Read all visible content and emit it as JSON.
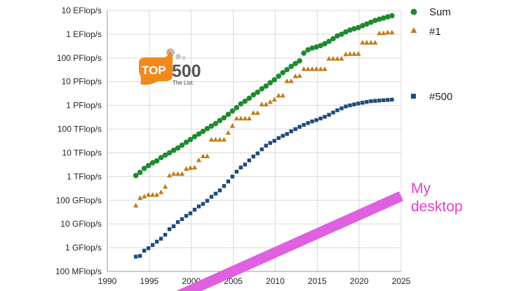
{
  "chart_data": {
    "type": "scatter",
    "title": "",
    "xlabel": "",
    "ylabel": "",
    "y_scale": "log",
    "xlim": [
      1990,
      2025
    ],
    "x_ticks": [
      1990,
      1995,
      2000,
      2005,
      2010,
      2015,
      2020,
      2025
    ],
    "y_tick_labels": [
      "100 MFlop/s",
      "1 GFlop/s",
      "10 GFlop/s",
      "100 GFlop/s",
      "1 TFlop/s",
      "10 TFlop/s",
      "100 TFlop/s",
      "1 PFlop/s",
      "10 PFlop/s",
      "100 PFlop/s",
      "1 EFlop/s",
      "10 EFlop/s"
    ],
    "ylim_gflops": [
      0.1,
      10000000000
    ],
    "grid": true,
    "legend": "right",
    "series": [
      {
        "name": "Sum",
        "marker": "circle",
        "color": "#1e8a2e",
        "x": [
          1993.4,
          1993.9,
          1994.4,
          1994.9,
          1995.4,
          1995.9,
          1996.4,
          1996.9,
          1997.4,
          1997.9,
          1998.4,
          1998.9,
          1999.4,
          1999.9,
          2000.4,
          2000.9,
          2001.4,
          2001.9,
          2002.4,
          2002.9,
          2003.4,
          2003.9,
          2004.4,
          2004.9,
          2005.4,
          2005.9,
          2006.4,
          2006.9,
          2007.4,
          2007.9,
          2008.4,
          2008.9,
          2009.4,
          2009.9,
          2010.4,
          2010.9,
          2011.4,
          2011.9,
          2012.4,
          2012.9,
          2013.4,
          2013.9,
          2014.4,
          2014.9,
          2015.4,
          2015.9,
          2016.4,
          2016.9,
          2017.4,
          2017.9,
          2018.4,
          2018.9,
          2019.4,
          2019.9,
          2020.4,
          2020.9,
          2021.4,
          2021.9,
          2022.4,
          2022.9,
          2023.4,
          2023.9
        ],
        "y_gflops": [
          1100,
          1500,
          2200,
          2900,
          3800,
          4600,
          6300,
          8000,
          10000,
          12800,
          16000,
          21000,
          28000,
          36000,
          48000,
          62000,
          80000,
          105000,
          135000,
          170000,
          230000,
          300000,
          420000,
          580000,
          800000,
          1150000,
          1500000,
          2000000,
          2800000,
          3600000,
          5000000,
          6500000,
          9000000,
          12000000,
          17000000,
          24000000,
          32000000,
          44000000,
          58000000,
          75000000,
          160000000,
          220000000,
          260000000,
          290000000,
          330000000,
          400000000,
          500000000,
          650000000,
          850000000,
          1000000000,
          1250000000,
          1500000000,
          1700000000,
          1900000000,
          2300000000,
          2700000000,
          3200000000,
          3800000000,
          4300000000,
          4800000000,
          5400000000,
          6000000000
        ]
      },
      {
        "name": "#1",
        "marker": "triangle",
        "color": "#c07a15",
        "x": [
          1993.4,
          1993.9,
          1994.4,
          1994.9,
          1995.4,
          1995.9,
          1996.4,
          1996.9,
          1997.4,
          1997.9,
          1998.4,
          1998.9,
          1999.4,
          1999.9,
          2000.4,
          2000.9,
          2001.4,
          2001.9,
          2002.4,
          2002.9,
          2003.4,
          2003.9,
          2004.4,
          2004.9,
          2005.4,
          2005.9,
          2006.4,
          2006.9,
          2007.4,
          2007.9,
          2008.4,
          2008.9,
          2009.4,
          2009.9,
          2010.4,
          2010.9,
          2011.4,
          2011.9,
          2012.4,
          2012.9,
          2013.4,
          2013.9,
          2014.4,
          2014.9,
          2015.4,
          2015.9,
          2016.4,
          2016.9,
          2017.4,
          2017.9,
          2018.4,
          2018.9,
          2019.4,
          2019.9,
          2020.4,
          2020.9,
          2021.4,
          2021.9,
          2022.4,
          2022.9,
          2023.4,
          2023.9
        ],
        "y_gflops": [
          60,
          125,
          145,
          170,
          170,
          170,
          220,
          370,
          1100,
          1300,
          1300,
          1300,
          2100,
          2300,
          2400,
          4900,
          7200,
          7200,
          36000,
          36000,
          36000,
          36000,
          70000,
          137000,
          280000,
          280000,
          280000,
          280000,
          480000,
          480000,
          1100000,
          1100000,
          1400000,
          1750000,
          2600000,
          2600000,
          10500000,
          10500000,
          17000000,
          17600000,
          34000000,
          34000000,
          34000000,
          34000000,
          34000000,
          34000000,
          93000000,
          93000000,
          93000000,
          93000000,
          143000000,
          148000000,
          148000000,
          149000000,
          442000000,
          442000000,
          442000000,
          442000000,
          1100000000,
          1100000000,
          1190000000,
          1190000000
        ]
      },
      {
        "name": "#500",
        "marker": "square",
        "color": "#1c4a7c",
        "x": [
          1993.4,
          1993.9,
          1994.4,
          1994.9,
          1995.4,
          1995.9,
          1996.4,
          1996.9,
          1997.4,
          1997.9,
          1998.4,
          1998.9,
          1999.4,
          1999.9,
          2000.4,
          2000.9,
          2001.4,
          2001.9,
          2002.4,
          2002.9,
          2003.4,
          2003.9,
          2004.4,
          2004.9,
          2005.4,
          2005.9,
          2006.4,
          2006.9,
          2007.4,
          2007.9,
          2008.4,
          2008.9,
          2009.4,
          2009.9,
          2010.4,
          2010.9,
          2011.4,
          2011.9,
          2012.4,
          2012.9,
          2013.4,
          2013.9,
          2014.4,
          2014.9,
          2015.4,
          2015.9,
          2016.4,
          2016.9,
          2017.4,
          2017.9,
          2018.4,
          2018.9,
          2019.4,
          2019.9,
          2020.4,
          2020.9,
          2021.4,
          2021.9,
          2022.4,
          2022.9,
          2023.4,
          2023.9
        ],
        "y_gflops": [
          0.42,
          0.45,
          0.75,
          0.95,
          1.3,
          1.8,
          2.4,
          3.5,
          6.0,
          8.0,
          12,
          16,
          22,
          28,
          40,
          55,
          70,
          95,
          140,
          190,
          260,
          400,
          620,
          1000,
          1600,
          2400,
          3200,
          4800,
          7000,
          9500,
          14000,
          20000,
          26000,
          32000,
          42000,
          52000,
          62000,
          80000,
          100000,
          125000,
          150000,
          180000,
          210000,
          240000,
          280000,
          330000,
          400000,
          500000,
          620000,
          750000,
          900000,
          1000000,
          1100000,
          1200000,
          1300000,
          1400000,
          1500000,
          1550000,
          1600000,
          1650000,
          1700000,
          1750000
        ]
      }
    ],
    "annotation": {
      "label_lines": [
        "My",
        "desktop"
      ],
      "color": "#e060e0",
      "x": [
        1998,
        2025
      ],
      "y_gflops": [
        0.008,
        150
      ]
    }
  },
  "logo": {
    "top_text": "TOP",
    "number_text": "500",
    "tagline": "The List."
  }
}
